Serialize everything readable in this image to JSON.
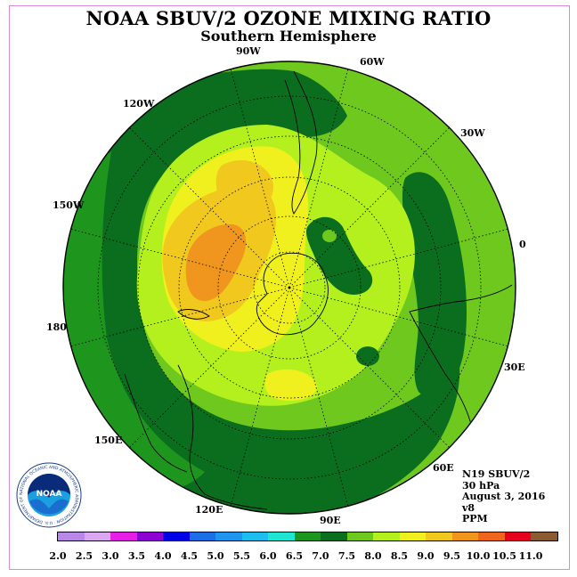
{
  "title": "NOAA SBUV/2 OZONE MIXING RATIO",
  "subtitle": "Southern Hemisphere",
  "longitude_labels": [
    "90W",
    "60W",
    "120W",
    "30W",
    "150W",
    "0",
    "180",
    "30E",
    "150E",
    "60E",
    "120E",
    "90E"
  ],
  "info": {
    "satellite": "N19 SBUV/2",
    "level": "30 hPa",
    "date": "August 3, 2016",
    "version": "v8",
    "units": "PPM"
  },
  "legend": {
    "labels": [
      "2.0",
      "2.5",
      "3.0",
      "3.5",
      "4.0",
      "4.5",
      "5.0",
      "5.5",
      "6.0",
      "6.5",
      "7.0",
      "7.5",
      "8.0",
      "8.5",
      "9.0",
      "9.5",
      "10.0",
      "10.5",
      "11.0"
    ],
    "colors": [
      "#b987e8",
      "#d9a8f0",
      "#e61ee6",
      "#8c00d4",
      "#0000e6",
      "#1e6ee6",
      "#1e96f0",
      "#1ebef0",
      "#1ee6d2",
      "#1e961e",
      "#0a6e1e",
      "#6ec81e",
      "#b4f01e",
      "#f0f01e",
      "#f0c81e",
      "#f0961e",
      "#f0641e",
      "#e6001e",
      "#8c5a32"
    ]
  },
  "map_colors": {
    "c65": "#1e961e",
    "c70": "#0a6e1e",
    "c75": "#6ec81e",
    "c80": "#b4f01e",
    "c85": "#f0f01e",
    "c90": "#f0c81e",
    "c95": "#f0961e"
  },
  "logo": {
    "text": "NOAA",
    "ring_text": "NATIONAL OCEANIC AND ATMOSPHERIC ADMINISTRATION · U.S. DEPARTMENT OF COMMERCE"
  }
}
